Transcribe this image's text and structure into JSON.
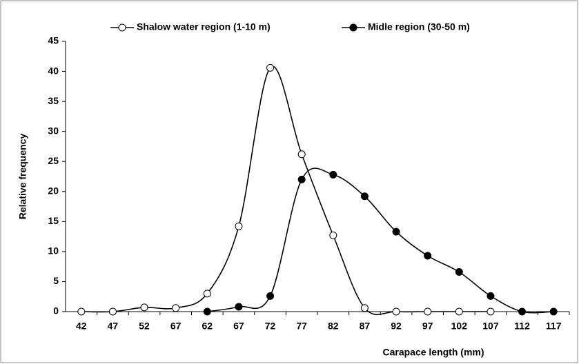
{
  "chart_data": {
    "type": "line",
    "smooth": true,
    "x_label": "Carapace length (mm)",
    "y_label": "Relative frequency",
    "categories": [
      "42",
      "47",
      "52",
      "67",
      "62",
      "67",
      "72",
      "77",
      "82",
      "87",
      "92",
      "97",
      "102",
      "107",
      "112",
      "117"
    ],
    "series": [
      {
        "name": "Shalow water region (1-10 m)",
        "color": "#000000",
        "marker_fill": "#ffffff",
        "values": [
          0,
          0,
          0.7,
          0.6,
          3.0,
          14.2,
          40.6,
          26.2,
          12.7,
          0.6,
          0,
          0,
          0,
          0,
          null,
          null
        ]
      },
      {
        "name": "Midle region (30-50 m)",
        "color": "#000000",
        "marker_fill": "#000000",
        "values": [
          null,
          null,
          null,
          null,
          0,
          0.8,
          2.6,
          22.0,
          22.8,
          19.2,
          13.3,
          9.3,
          6.6,
          2.6,
          0,
          0
        ]
      }
    ],
    "ylim": [
      0,
      45
    ],
    "yticks": [
      0,
      5,
      10,
      15,
      20,
      25,
      30,
      35,
      40,
      45
    ],
    "grid": false,
    "legend": "top"
  }
}
